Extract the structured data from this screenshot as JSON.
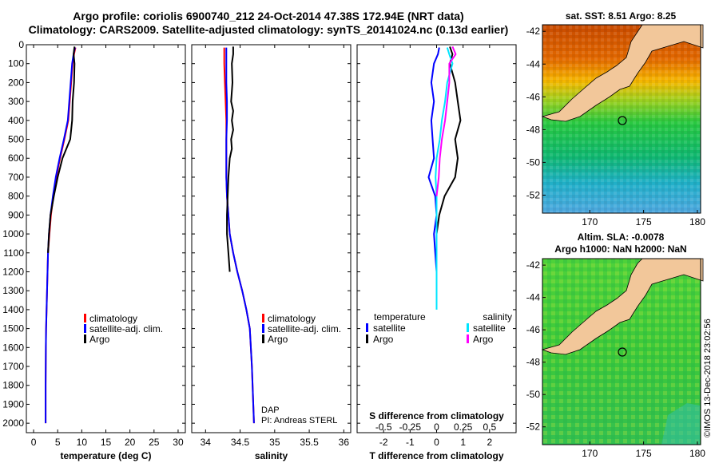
{
  "title": {
    "line1": "Argo profile: coriolis 6900740_212 24-Oct-2014 47.38S 172.94E (NRT data)",
    "line2": "Climatology: CARS2009. Satellite-adjusted climatology: synTS_20141024.nc (0.13d earlier)"
  },
  "colors": {
    "climatology": "#ff0000",
    "satellite": "#0000ff",
    "argo": "#000000",
    "sal_satellite": "#00e5ff",
    "sal_argo": "#ff00ff",
    "land": "#f2c79a"
  },
  "depth_ticks": [
    "0",
    "100",
    "200",
    "300",
    "400",
    "500",
    "600",
    "700",
    "800",
    "900",
    "1000",
    "1100",
    "1200",
    "1300",
    "1400",
    "1500",
    "1600",
    "1700",
    "1800",
    "1900",
    "2000"
  ],
  "chart_data": [
    {
      "type": "line",
      "id": "temperature",
      "xlabel": "temperature (deg C)",
      "xlim": [
        -1.5,
        31.5
      ],
      "xticks": [
        "0",
        "5",
        "10",
        "15",
        "20",
        "25",
        "30"
      ],
      "ylim": [
        0,
        2050
      ],
      "y_reversed": true,
      "legend": [
        "climatology",
        "satellite-adj. clim.",
        "Argo"
      ],
      "series": [
        {
          "name": "climatology",
          "color": "#ff0000",
          "x": [
            8.7,
            8.4,
            8.1,
            7.8,
            7.5,
            7.2,
            6.4,
            5.5,
            4.7,
            4.1,
            3.6,
            3.3,
            3.0,
            2.9,
            2.8,
            2.7,
            2.6,
            2.55,
            2.5,
            2.5
          ],
          "y": [
            15,
            50,
            100,
            200,
            300,
            400,
            500,
            600,
            700,
            800,
            900,
            1000,
            1100,
            1200,
            1300,
            1400,
            1500,
            1600,
            1800,
            2000
          ]
        },
        {
          "name": "satellite-adj. clim.",
          "color": "#0000ff",
          "x": [
            8.6,
            8.3,
            8.0,
            7.7,
            7.4,
            7.1,
            6.3,
            5.4,
            4.6,
            4.0,
            3.5,
            3.2,
            3.0,
            2.9,
            2.8,
            2.7,
            2.6,
            2.55,
            2.5,
            2.5
          ],
          "y": [
            15,
            50,
            100,
            200,
            300,
            400,
            500,
            600,
            700,
            800,
            900,
            1000,
            1100,
            1200,
            1300,
            1400,
            1500,
            1600,
            1800,
            2000
          ]
        },
        {
          "name": "Argo",
          "color": "#000000",
          "x": [
            8.5,
            8.3,
            8.5,
            8.4,
            8.1,
            8.0,
            7.6,
            6.0,
            5.0,
            4.2,
            3.5,
            3.2,
            3.0
          ],
          "y": [
            10,
            50,
            100,
            200,
            300,
            400,
            500,
            600,
            700,
            800,
            900,
            1000,
            1100
          ]
        }
      ]
    },
    {
      "type": "line",
      "id": "salinity",
      "xlabel": "salinity",
      "xlim": [
        33.8,
        36.1
      ],
      "xticks": [
        "34",
        "34.5",
        "35",
        "35.5",
        "36"
      ],
      "ylim": [
        0,
        2050
      ],
      "y_reversed": true,
      "legend": [
        "climatology",
        "satellite-adj. clim.",
        "Argo"
      ],
      "annotation": [
        "DAP",
        "PI: Andreas STERL"
      ],
      "series": [
        {
          "name": "climatology",
          "color": "#ff0000",
          "x": [
            34.27,
            34.27,
            34.28,
            34.29,
            34.3,
            34.3,
            34.3,
            34.3,
            34.31,
            34.33,
            34.35,
            34.4,
            34.46,
            34.53,
            34.59,
            34.64,
            34.67,
            34.7
          ],
          "y": [
            15,
            100,
            200,
            300,
            400,
            500,
            600,
            700,
            800,
            900,
            1000,
            1100,
            1200,
            1300,
            1400,
            1500,
            1700,
            2000
          ]
        },
        {
          "name": "satellite-adj. clim.",
          "color": "#0000ff",
          "x": [
            34.3,
            34.3,
            34.3,
            34.31,
            34.31,
            34.3,
            34.3,
            34.3,
            34.31,
            34.33,
            34.35,
            34.4,
            34.46,
            34.53,
            34.59,
            34.64,
            34.67,
            34.7
          ],
          "y": [
            15,
            100,
            200,
            300,
            400,
            500,
            600,
            700,
            800,
            900,
            1000,
            1100,
            1200,
            1300,
            1400,
            1500,
            1700,
            2000
          ]
        },
        {
          "name": "Argo",
          "color": "#000000",
          "x": [
            34.4,
            34.4,
            34.38,
            34.39,
            34.37,
            34.4,
            34.38,
            34.4,
            34.37,
            34.38,
            34.35,
            34.33,
            34.32,
            34.31,
            34.31,
            34.31,
            34.32,
            34.33,
            34.35
          ],
          "y": [
            10,
            50,
            100,
            200,
            300,
            350,
            400,
            450,
            500,
            550,
            600,
            700,
            800,
            900,
            950,
            1000,
            1050,
            1100,
            1200
          ]
        }
      ]
    },
    {
      "type": "line",
      "id": "difference",
      "xlabel": "T difference from climatology",
      "xlim": [
        -3,
        3
      ],
      "xticks": [
        "-2",
        "-1",
        "0",
        "1",
        "2"
      ],
      "sub_label": "S difference from climatology",
      "sub_ticks": [
        "-0.5",
        "-0.25",
        "0",
        "0.25",
        "0.5"
      ],
      "ylim": [
        0,
        2050
      ],
      "y_reversed": true,
      "legend_left": {
        "heading": "temperature",
        "items": [
          "satellite",
          "Argo"
        ]
      },
      "legend_right": {
        "heading": "salinity",
        "items": [
          "satellite",
          "Argo"
        ]
      },
      "series": [
        {
          "name": "satellite",
          "group": "temperature",
          "color": "#0000ff",
          "x": [
            0.1,
            0.05,
            -0.1,
            -0.2,
            -0.1,
            -0.2,
            -0.15,
            -0.1,
            -0.3,
            -0.05,
            0.0,
            -0.1,
            -0.05,
            0.0
          ],
          "y": [
            15,
            50,
            100,
            200,
            300,
            400,
            500,
            600,
            700,
            800,
            900,
            1000,
            1100,
            1200
          ]
        },
        {
          "name": "Argo",
          "group": "temperature",
          "color": "#000000",
          "x": [
            0.5,
            0.6,
            0.5,
            0.7,
            0.8,
            0.9,
            0.7,
            0.8,
            0.7,
            0.3,
            0.1,
            0.0
          ],
          "y": [
            10,
            50,
            100,
            200,
            300,
            400,
            500,
            600,
            700,
            800,
            900,
            1000
          ]
        },
        {
          "name": "satellite",
          "group": "salinity",
          "color": "#00e5ff",
          "x": [
            0.1,
            0.12,
            0.15,
            0.1,
            0.08,
            0.05,
            0.03,
            0.0,
            -0.01,
            0.0,
            0.0,
            0.0,
            0.0,
            0.0
          ],
          "y": [
            15,
            50,
            100,
            200,
            300,
            400,
            500,
            600,
            700,
            800,
            900,
            1000,
            1100,
            1400
          ]
        },
        {
          "name": "Argo",
          "group": "salinity",
          "color": "#ff00ff",
          "x": [
            0.15,
            0.18,
            0.12,
            0.12,
            0.1,
            0.08,
            0.05,
            0.03,
            0.02,
            0.0
          ],
          "y": [
            10,
            50,
            100,
            200,
            300,
            400,
            500,
            600,
            700,
            800
          ]
        }
      ]
    }
  ],
  "maps": [
    {
      "id": "sst-map",
      "label": "sat. SST: 8.51 Argo: 8.25",
      "yticks": [
        "-42",
        "-44",
        "-46",
        "-48",
        "-50",
        "-52"
      ],
      "xticks": [
        "170",
        "175",
        "180"
      ]
    },
    {
      "id": "sla-map",
      "label_line1": "Altim. SLA: -0.0078",
      "label_line2": "Argo h1000: NaN h2000: NaN",
      "yticks": [
        "-42",
        "-44",
        "-46",
        "-48",
        "-50",
        "-52"
      ],
      "xticks": [
        "170",
        "175",
        "180"
      ]
    }
  ],
  "credit": "©IMOS 13-Dec-2018 23:02:56"
}
